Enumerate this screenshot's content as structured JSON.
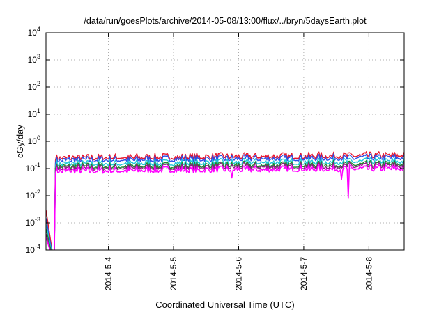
{
  "chart_data": {
    "type": "line",
    "title": "/data/run/goesPlots/archive/2014-05-08/13:00/flux/../bryn/5daysEarth.plot",
    "xlabel": "Coordinated Universal Time (UTC)",
    "ylabel": "cGy/day",
    "y_scale": "log",
    "ylim": [
      "1e-4",
      "1e4"
    ],
    "y_ticks": [
      {
        "value": "1e-4",
        "base": "10",
        "exp": "-4"
      },
      {
        "value": "1e-3",
        "base": "10",
        "exp": "-3"
      },
      {
        "value": "1e-2",
        "base": "10",
        "exp": "-2"
      },
      {
        "value": "1e-1",
        "base": "10",
        "exp": "-1"
      },
      {
        "value": "1e0",
        "base": "10",
        "exp": "0"
      },
      {
        "value": "1e1",
        "base": "10",
        "exp": "1"
      },
      {
        "value": "1e2",
        "base": "10",
        "exp": "2"
      },
      {
        "value": "1e3",
        "base": "10",
        "exp": "3"
      },
      {
        "value": "1e4",
        "base": "10",
        "exp": "4"
      }
    ],
    "xlim": [
      "2014-05-03 01:00",
      "2014-05-08 13:00"
    ],
    "x_ticks": [
      "2014-5-4",
      "2014-5-5",
      "2014-5-6",
      "2014-5-7",
      "2014-5-8"
    ],
    "grid": true,
    "series": [
      {
        "color": "#e8142c",
        "base": 0.24,
        "start_value": 0.003
      },
      {
        "color": "#2a4fe8",
        "base": 0.2,
        "start_value": 0.0015
      },
      {
        "color": "#1ec8d8",
        "base": 0.145,
        "start_value": 0.0009
      },
      {
        "color": "#1a8a2a",
        "base": 0.115,
        "start_value": 0.0006
      },
      {
        "color": "#8a2080",
        "base": 0.1,
        "start_value": 0.0004
      },
      {
        "color": "#ff00ff",
        "base": 0.08,
        "start_value": 0.0003
      }
    ],
    "dips": [
      {
        "series": 5,
        "date": "2014-05-05 21:30",
        "value": 0.045
      },
      {
        "series": 5,
        "date": "2014-05-07 14:00",
        "value": 0.04
      },
      {
        "series": 5,
        "date": "2014-05-07 16:30",
        "value": 0.008
      }
    ]
  }
}
